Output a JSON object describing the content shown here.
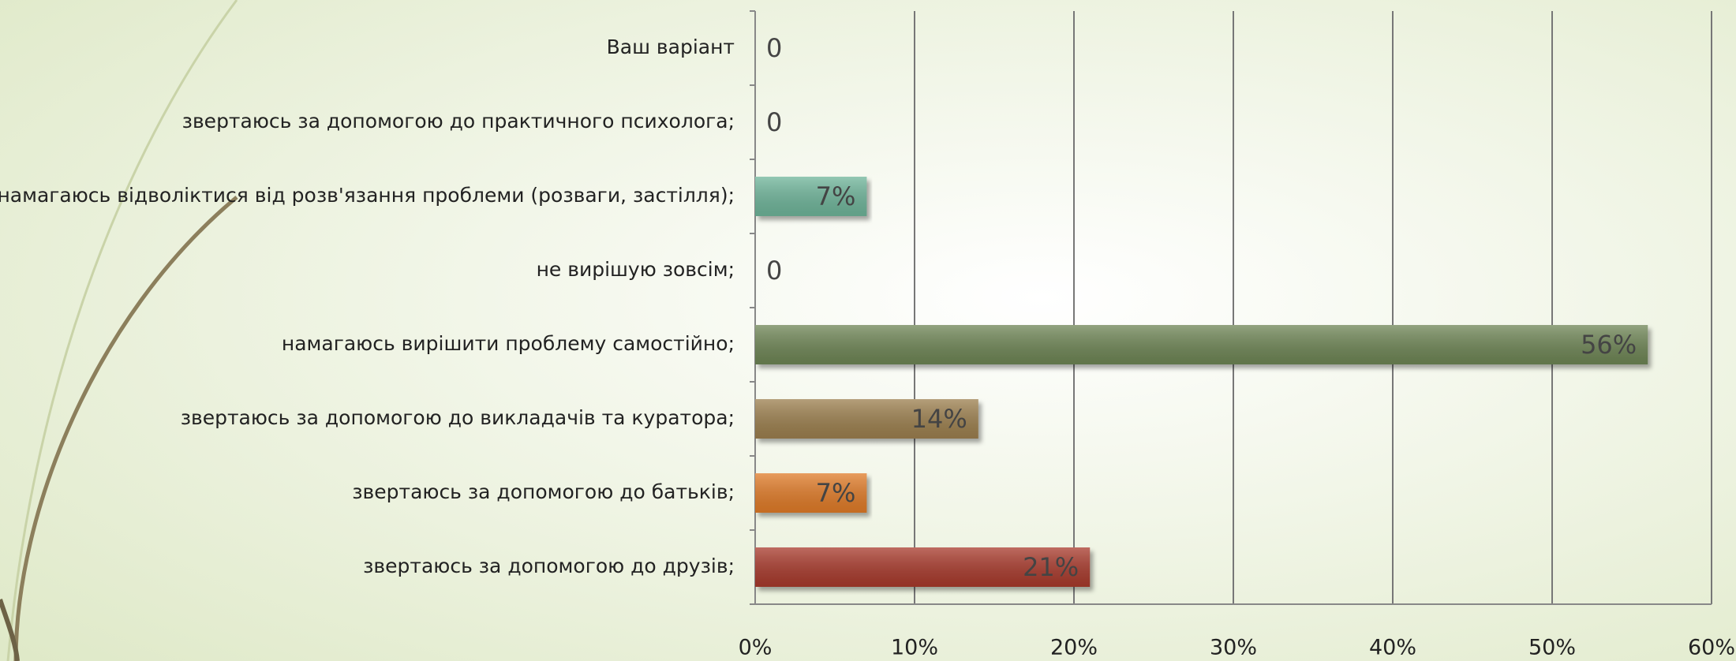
{
  "chart_data": {
    "type": "barh",
    "categories": [
      "Ваш варіант",
      "звертаюсь за допомогою до практичного психолога;",
      "намагаюсь відволіктися від розв'язання проблеми (розваги, застілля);",
      "не вирішую зовсім;",
      "намагаюсь вирішити проблему самостійно;",
      "звертаюсь за допомогою до викладачів та куратора;",
      "звертаюсь за допомогою до батьків;",
      "звертаюсь за допомогою до друзів;"
    ],
    "values": [
      0,
      0,
      7,
      0,
      56,
      14,
      7,
      21
    ],
    "value_labels": [
      "0",
      "0",
      "7%",
      "0",
      "56%",
      "14%",
      "7%",
      "21%"
    ],
    "colors": [
      "#6fb59a",
      "#6fb59a",
      "#6fb59a",
      "#6e8555",
      "#6e8555",
      "#9c7f4e",
      "#e07b28",
      "#a83a2c"
    ],
    "xlim": [
      0,
      60
    ],
    "xticks": [
      {
        "value": 0,
        "label": "0%"
      },
      {
        "value": 10,
        "label": "10%"
      },
      {
        "value": 20,
        "label": "20%"
      },
      {
        "value": 30,
        "label": "30%"
      },
      {
        "value": 40,
        "label": "40%"
      },
      {
        "value": 50,
        "label": "50%"
      },
      {
        "value": 60,
        "label": "60%"
      }
    ],
    "grid": true
  }
}
